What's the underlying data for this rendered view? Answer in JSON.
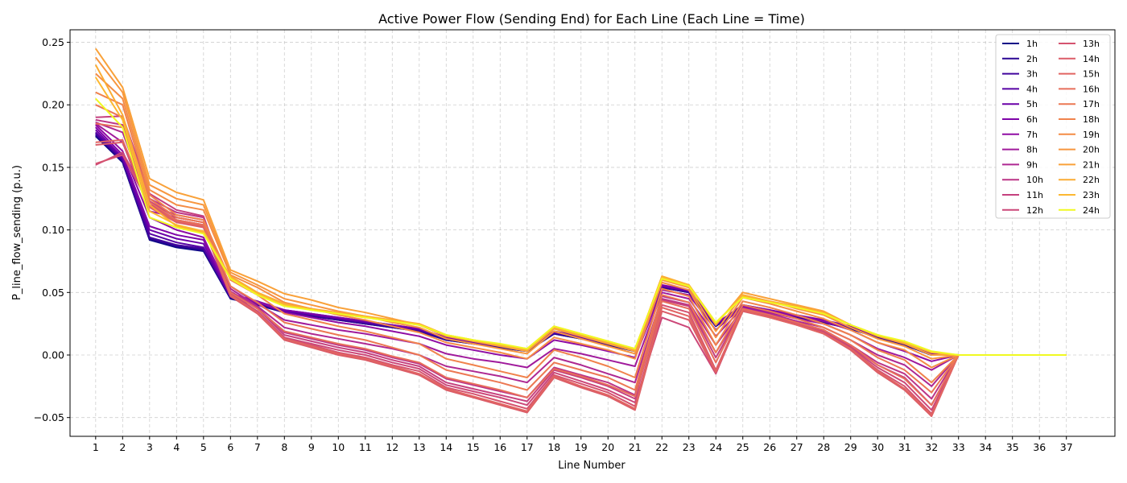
{
  "chart_data": {
    "type": "line",
    "title": "Active Power Flow (Sending End) for Each Line (Each Line = Time)",
    "xlabel": "Line Number",
    "ylabel": "P_line_flow_sending (p.u.)",
    "x": [
      1,
      2,
      3,
      4,
      5,
      6,
      7,
      8,
      9,
      10,
      11,
      12,
      13,
      14,
      15,
      16,
      17,
      18,
      19,
      20,
      21,
      22,
      23,
      24,
      25,
      26,
      27,
      28,
      29,
      30,
      31,
      32,
      33,
      34,
      35,
      36,
      37
    ],
    "ylim": [
      -0.065,
      0.26
    ],
    "yticks": [
      -0.05,
      0.0,
      0.05,
      0.1,
      0.15,
      0.2,
      0.25
    ],
    "ytick_labels": [
      "−0.05",
      "0.00",
      "0.05",
      "0.10",
      "0.15",
      "0.20",
      "0.25"
    ],
    "grid": true,
    "legend_position": "top-right",
    "legend_columns": 2,
    "series": [
      {
        "name": "1h",
        "color": "#0d0887",
        "values": [
          0.175,
          0.154,
          0.092,
          0.086,
          0.083,
          0.045,
          0.04,
          0.034,
          0.031,
          0.028,
          0.025,
          0.022,
          0.019,
          0.012,
          0.009,
          0.006,
          0.003,
          0.017,
          0.013,
          0.008,
          0.003,
          0.054,
          0.05,
          0.023,
          0.038,
          0.035,
          0.03,
          0.026,
          0.021,
          0.014,
          0.008,
          0.0,
          0.0,
          0.0,
          0.0,
          0.0,
          0.0
        ]
      },
      {
        "name": "2h",
        "color": "#2a0593",
        "values": [
          0.176,
          0.155,
          0.093,
          0.087,
          0.084,
          0.046,
          0.041,
          0.034,
          0.031,
          0.028,
          0.025,
          0.022,
          0.019,
          0.012,
          0.009,
          0.006,
          0.003,
          0.017,
          0.013,
          0.008,
          0.003,
          0.054,
          0.05,
          0.023,
          0.039,
          0.035,
          0.03,
          0.026,
          0.021,
          0.014,
          0.008,
          0.0,
          0.0,
          0.0,
          0.0,
          0.0,
          0.0
        ]
      },
      {
        "name": "3h",
        "color": "#41049d",
        "values": [
          0.177,
          0.156,
          0.094,
          0.088,
          0.085,
          0.046,
          0.041,
          0.035,
          0.032,
          0.029,
          0.026,
          0.023,
          0.02,
          0.013,
          0.01,
          0.007,
          0.004,
          0.018,
          0.014,
          0.009,
          0.004,
          0.055,
          0.051,
          0.024,
          0.039,
          0.035,
          0.031,
          0.027,
          0.022,
          0.015,
          0.009,
          0.0,
          0.0,
          0.0,
          0.0,
          0.0,
          0.0
        ]
      },
      {
        "name": "4h",
        "color": "#5601a4",
        "values": [
          0.178,
          0.157,
          0.097,
          0.09,
          0.086,
          0.047,
          0.042,
          0.035,
          0.032,
          0.029,
          0.026,
          0.023,
          0.02,
          0.013,
          0.01,
          0.007,
          0.004,
          0.018,
          0.014,
          0.009,
          0.004,
          0.055,
          0.051,
          0.024,
          0.039,
          0.035,
          0.031,
          0.027,
          0.022,
          0.015,
          0.009,
          0.0,
          0.0,
          0.0,
          0.0,
          0.0,
          0.0
        ]
      },
      {
        "name": "5h",
        "color": "#6a00a8",
        "values": [
          0.18,
          0.158,
          0.1,
          0.093,
          0.089,
          0.047,
          0.042,
          0.036,
          0.033,
          0.03,
          0.027,
          0.024,
          0.021,
          0.014,
          0.01,
          0.007,
          0.004,
          0.018,
          0.014,
          0.009,
          0.004,
          0.055,
          0.051,
          0.024,
          0.04,
          0.036,
          0.031,
          0.027,
          0.022,
          0.015,
          0.009,
          0.001,
          0.0,
          0.0,
          0.0,
          0.0,
          0.0
        ]
      },
      {
        "name": "6h",
        "color": "#7e03a8",
        "values": [
          0.182,
          0.16,
          0.103,
          0.096,
          0.092,
          0.048,
          0.043,
          0.036,
          0.033,
          0.03,
          0.027,
          0.024,
          0.021,
          0.014,
          0.011,
          0.008,
          0.005,
          0.019,
          0.015,
          0.01,
          0.005,
          0.056,
          0.052,
          0.025,
          0.04,
          0.036,
          0.032,
          0.028,
          0.023,
          0.016,
          0.01,
          0.001,
          0.0,
          0.0,
          0.0,
          0.0,
          0.0
        ]
      },
      {
        "name": "7h",
        "color": "#8f0da4",
        "values": [
          0.184,
          0.163,
          0.11,
          0.1,
          0.094,
          0.049,
          0.043,
          0.034,
          0.03,
          0.026,
          0.023,
          0.019,
          0.015,
          0.008,
          0.004,
          0.0,
          -0.003,
          0.012,
          0.008,
          0.003,
          -0.002,
          0.052,
          0.048,
          0.02,
          0.039,
          0.035,
          0.031,
          0.027,
          0.02,
          0.01,
          0.003,
          -0.005,
          0.0,
          0.0,
          0.0,
          0.0,
          0.0
        ]
      },
      {
        "name": "8h",
        "color": "#a01a9c",
        "values": [
          0.185,
          0.17,
          0.115,
          0.11,
          0.106,
          0.055,
          0.041,
          0.028,
          0.024,
          0.02,
          0.017,
          0.013,
          0.009,
          0.001,
          -0.003,
          -0.006,
          -0.01,
          0.005,
          0.001,
          -0.004,
          -0.009,
          0.05,
          0.045,
          0.015,
          0.038,
          0.034,
          0.029,
          0.025,
          0.016,
          0.005,
          -0.002,
          -0.012,
          0.0,
          0.0,
          0.0,
          0.0,
          0.0
        ]
      },
      {
        "name": "9h",
        "color": "#ae2892",
        "values": [
          0.186,
          0.178,
          0.12,
          0.112,
          0.108,
          0.053,
          0.039,
          0.022,
          0.017,
          0.013,
          0.009,
          0.005,
          0.0,
          -0.009,
          -0.013,
          -0.017,
          -0.022,
          -0.002,
          -0.008,
          -0.015,
          -0.022,
          0.047,
          0.042,
          0.008,
          0.037,
          0.033,
          0.027,
          0.022,
          0.012,
          0.0,
          -0.008,
          -0.025,
          0.0,
          0.0,
          0.0,
          0.0,
          0.0
        ]
      },
      {
        "name": "10h",
        "color": "#bc3587",
        "values": [
          0.188,
          0.184,
          0.125,
          0.114,
          0.11,
          0.051,
          0.038,
          0.018,
          0.013,
          0.008,
          0.004,
          -0.002,
          -0.007,
          -0.019,
          -0.024,
          -0.029,
          -0.034,
          -0.01,
          -0.016,
          -0.022,
          -0.032,
          0.045,
          0.04,
          0.002,
          0.036,
          0.032,
          0.026,
          0.02,
          0.008,
          -0.006,
          -0.015,
          -0.035,
          0.0,
          0.0,
          0.0,
          0.0,
          0.0
        ]
      },
      {
        "name": "11h",
        "color": "#c5407e",
        "values": [
          0.19,
          0.191,
          0.129,
          0.116,
          0.111,
          0.05,
          0.037,
          0.016,
          0.011,
          0.006,
          0.002,
          -0.004,
          -0.009,
          -0.022,
          -0.027,
          -0.032,
          -0.037,
          -0.012,
          -0.018,
          -0.025,
          -0.035,
          0.044,
          0.039,
          -0.002,
          0.036,
          0.031,
          0.025,
          0.019,
          0.007,
          -0.008,
          -0.018,
          -0.04,
          0.0,
          0.0,
          0.0,
          0.0,
          0.0
        ]
      },
      {
        "name": "12h",
        "color": "#cc4778",
        "values": [
          0.152,
          0.162,
          0.123,
          0.11,
          0.106,
          0.049,
          0.035,
          0.014,
          0.009,
          0.004,
          0.0,
          -0.006,
          -0.011,
          -0.024,
          -0.029,
          -0.034,
          -0.04,
          -0.014,
          -0.021,
          -0.028,
          -0.038,
          0.03,
          0.022,
          -0.015,
          0.036,
          0.031,
          0.025,
          0.018,
          0.006,
          -0.01,
          -0.022,
          -0.044,
          0.0,
          0.0,
          0.0,
          0.0,
          0.0
        ]
      },
      {
        "name": "13h",
        "color": "#d5536f",
        "values": [
          0.153,
          0.16,
          0.12,
          0.108,
          0.104,
          0.048,
          0.034,
          0.013,
          0.008,
          0.002,
          -0.002,
          -0.008,
          -0.013,
          -0.026,
          -0.031,
          -0.037,
          -0.043,
          -0.016,
          -0.023,
          -0.03,
          -0.041,
          0.04,
          0.034,
          -0.012,
          0.036,
          0.031,
          0.025,
          0.018,
          0.005,
          -0.012,
          -0.025,
          -0.047,
          0.0,
          0.0,
          0.0,
          0.0,
          0.0
        ]
      },
      {
        "name": "14h",
        "color": "#db5c68",
        "values": [
          0.168,
          0.17,
          0.118,
          0.106,
          0.102,
          0.047,
          0.033,
          0.012,
          0.006,
          0.0,
          -0.004,
          -0.01,
          -0.016,
          -0.028,
          -0.034,
          -0.04,
          -0.046,
          -0.018,
          -0.026,
          -0.033,
          -0.044,
          0.035,
          0.028,
          -0.014,
          0.035,
          0.03,
          0.024,
          0.017,
          0.004,
          -0.014,
          -0.028,
          -0.049,
          0.0,
          0.0,
          0.0,
          0.0,
          0.0
        ]
      },
      {
        "name": "15h",
        "color": "#e16462",
        "values": [
          0.17,
          0.172,
          0.119,
          0.107,
          0.103,
          0.048,
          0.034,
          0.013,
          0.007,
          0.001,
          -0.003,
          -0.009,
          -0.015,
          -0.027,
          -0.033,
          -0.039,
          -0.045,
          -0.017,
          -0.025,
          -0.032,
          -0.043,
          0.038,
          0.031,
          -0.013,
          0.036,
          0.03,
          0.024,
          0.017,
          0.005,
          -0.013,
          -0.027,
          -0.048,
          0.0,
          0.0,
          0.0,
          0.0,
          0.0
        ]
      },
      {
        "name": "16h",
        "color": "#e76e5b",
        "values": [
          0.185,
          0.182,
          0.122,
          0.108,
          0.104,
          0.05,
          0.037,
          0.019,
          0.014,
          0.009,
          0.005,
          -0.001,
          -0.006,
          -0.018,
          -0.023,
          -0.028,
          -0.034,
          -0.011,
          -0.017,
          -0.024,
          -0.033,
          0.043,
          0.037,
          -0.006,
          0.037,
          0.032,
          0.026,
          0.02,
          0.008,
          -0.008,
          -0.019,
          -0.04,
          0.0,
          0.0,
          0.0,
          0.0,
          0.0
        ]
      },
      {
        "name": "17h",
        "color": "#ec7853",
        "values": [
          0.2,
          0.19,
          0.125,
          0.11,
          0.106,
          0.055,
          0.042,
          0.026,
          0.021,
          0.016,
          0.012,
          0.006,
          0.0,
          -0.012,
          -0.017,
          -0.022,
          -0.028,
          -0.006,
          -0.012,
          -0.018,
          -0.028,
          0.048,
          0.042,
          0.002,
          0.04,
          0.035,
          0.029,
          0.022,
          0.012,
          -0.002,
          -0.012,
          -0.03,
          0.0,
          0.0,
          0.0,
          0.0,
          0.0
        ]
      },
      {
        "name": "18h",
        "color": "#f0824c",
        "values": [
          0.21,
          0.2,
          0.128,
          0.112,
          0.108,
          0.06,
          0.048,
          0.033,
          0.028,
          0.023,
          0.019,
          0.014,
          0.009,
          -0.003,
          -0.008,
          -0.013,
          -0.018,
          0.004,
          -0.002,
          -0.009,
          -0.018,
          0.053,
          0.047,
          0.008,
          0.043,
          0.038,
          0.032,
          0.025,
          0.016,
          0.004,
          -0.004,
          -0.022,
          0.0,
          0.0,
          0.0,
          0.0,
          0.0
        ]
      },
      {
        "name": "19h",
        "color": "#f48c45",
        "values": [
          0.225,
          0.205,
          0.132,
          0.12,
          0.116,
          0.064,
          0.054,
          0.042,
          0.037,
          0.032,
          0.028,
          0.023,
          0.018,
          0.01,
          0.006,
          0.002,
          -0.003,
          0.014,
          0.009,
          0.004,
          -0.003,
          0.058,
          0.052,
          0.014,
          0.046,
          0.041,
          0.035,
          0.029,
          0.02,
          0.01,
          0.004,
          -0.01,
          0.0,
          0.0,
          0.0,
          0.0,
          0.0
        ]
      },
      {
        "name": "20h",
        "color": "#f7963f",
        "values": [
          0.238,
          0.21,
          0.136,
          0.125,
          0.12,
          0.066,
          0.056,
          0.045,
          0.04,
          0.035,
          0.031,
          0.026,
          0.022,
          0.013,
          0.009,
          0.005,
          0.001,
          0.019,
          0.013,
          0.007,
          0.001,
          0.06,
          0.054,
          0.019,
          0.048,
          0.043,
          0.037,
          0.032,
          0.022,
          0.013,
          0.007,
          -0.003,
          0.0,
          0.0,
          0.0,
          0.0,
          0.0
        ]
      },
      {
        "name": "21h",
        "color": "#f9a139",
        "values": [
          0.245,
          0.214,
          0.141,
          0.13,
          0.124,
          0.068,
          0.059,
          0.049,
          0.044,
          0.038,
          0.034,
          0.029,
          0.024,
          0.015,
          0.011,
          0.007,
          0.003,
          0.021,
          0.015,
          0.009,
          0.003,
          0.062,
          0.056,
          0.024,
          0.05,
          0.045,
          0.04,
          0.035,
          0.024,
          0.015,
          0.009,
          0.0,
          0.0,
          0.0,
          0.0,
          0.0,
          0.0
        ]
      },
      {
        "name": "22h",
        "color": "#fbac34",
        "values": [
          0.232,
          0.192,
          0.12,
          0.103,
          0.098,
          0.063,
          0.05,
          0.041,
          0.037,
          0.034,
          0.031,
          0.028,
          0.025,
          0.016,
          0.012,
          0.008,
          0.004,
          0.022,
          0.016,
          0.01,
          0.004,
          0.063,
          0.056,
          0.025,
          0.048,
          0.043,
          0.039,
          0.034,
          0.024,
          0.016,
          0.01,
          0.002,
          0.0,
          0.0,
          0.0,
          0.0,
          0.0
        ]
      },
      {
        "name": "23h",
        "color": "#fcb831",
        "values": [
          0.222,
          0.188,
          0.115,
          0.104,
          0.099,
          0.062,
          0.049,
          0.04,
          0.036,
          0.033,
          0.03,
          0.027,
          0.024,
          0.016,
          0.012,
          0.008,
          0.005,
          0.023,
          0.017,
          0.011,
          0.005,
          0.062,
          0.056,
          0.026,
          0.047,
          0.042,
          0.038,
          0.033,
          0.024,
          0.016,
          0.01,
          0.002,
          0.0,
          0.0,
          0.0,
          0.0,
          0.0
        ]
      },
      {
        "name": "24h",
        "color": "#f0f921",
        "values": [
          0.205,
          0.182,
          0.11,
          0.102,
          0.097,
          0.061,
          0.048,
          0.039,
          0.036,
          0.033,
          0.03,
          0.027,
          0.024,
          0.016,
          0.012,
          0.009,
          0.005,
          0.023,
          0.017,
          0.011,
          0.005,
          0.061,
          0.055,
          0.026,
          0.046,
          0.042,
          0.038,
          0.033,
          0.024,
          0.016,
          0.011,
          0.003,
          0.0,
          0.0,
          0.0,
          0.0,
          0.0
        ]
      }
    ]
  }
}
